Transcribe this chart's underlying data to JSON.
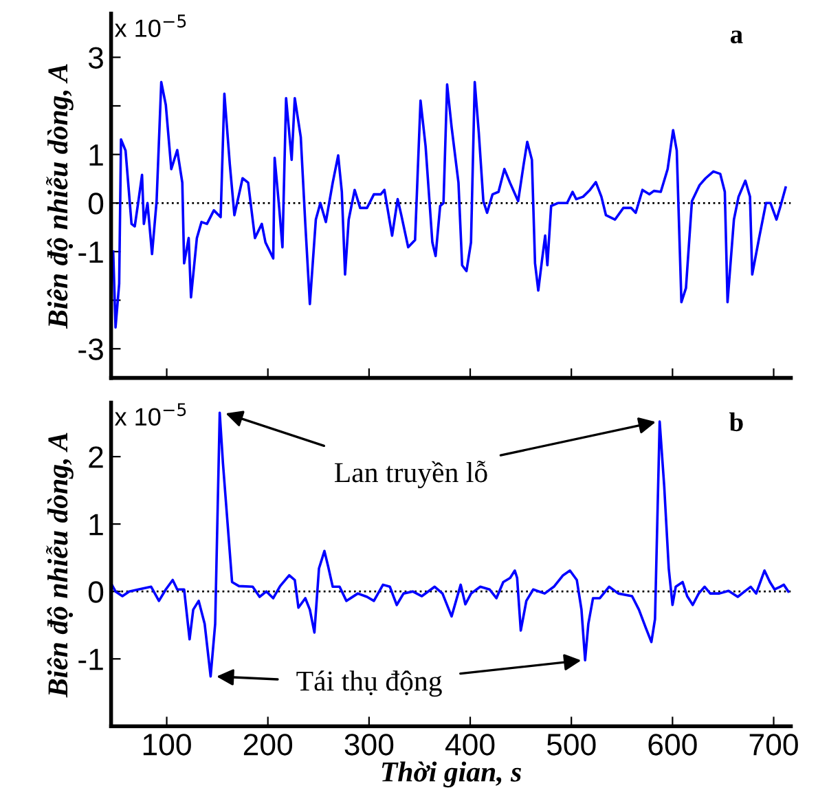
{
  "chart_data": [
    {
      "type": "line",
      "ylabel": "Biên độ nhiễu dòng, A",
      "annotations": [
        "x 10$^{−5}$",
        "a"
      ],
      "xlim": [
        45,
        717
      ],
      "xticks": [
        100,
        200,
        300,
        400,
        500,
        600,
        700
      ],
      "ylim": [
        -3.6,
        3.9
      ],
      "yticks": [
        -3,
        {
          "value": -2,
          "label": null
        },
        -1,
        0,
        1,
        {
          "value": 2,
          "label": null
        },
        3
      ],
      "tick_labels": "y",
      "grid": false,
      "line_style": "solid",
      "marker": "none",
      "ref_lines": [
        {
          "axis": "y",
          "value": 0,
          "color": "#000000",
          "line_style": "dotted"
        }
      ],
      "series": [
        {
          "color": "#0000ff",
          "x": [
            47.1,
            49.4,
            53,
            54.8,
            59.3,
            65.2,
            68.4,
            72,
            75.6,
            77.4,
            81,
            85.5,
            90,
            94.6,
            99.1,
            104.5,
            110.4,
            115.4,
            117.2,
            121.7,
            124,
            129.8,
            134.4,
            139.8,
            146.6,
            153.3,
            157,
            162.4,
            166.9,
            175,
            180.5,
            187.2,
            194,
            197.6,
            205.3,
            206.7,
            211.2,
            214.4,
            218,
            223.5,
            226.6,
            232.5,
            237,
            241.5,
            247.4,
            251.9,
            257.3,
            264.1,
            269.5,
            273.1,
            276.3,
            279.9,
            285.8,
            291.2,
            298,
            304.8,
            311.6,
            315.2,
            322.8,
            328.3,
            331.9,
            338.7,
            345.5,
            350.9,
            355.9,
            362.6,
            365.8,
            370.3,
            373.6,
            377.2,
            381.7,
            388.4,
            392,
            396.3,
            400.8,
            404.5,
            408.5,
            413,
            416.7,
            422.1,
            428,
            433.8,
            439.3,
            447.4,
            452.8,
            456.4,
            461,
            464.1,
            467.3,
            470.9,
            474.1,
            476.3,
            480,
            486.7,
            495.8,
            501.2,
            504.8,
            511.6,
            518.4,
            524.2,
            529.7,
            534.2,
            543.2,
            551.4,
            559,
            563.6,
            570.3,
            577.1,
            581.6,
            588.4,
            595.2,
            600.6,
            604.2,
            608.8,
            613.3,
            619.2,
            626.8,
            632.7,
            640.4,
            647.2,
            651.7,
            654.4,
            660.7,
            665.3,
            672,
            676.6,
            678.8,
            685.6,
            692.4,
            696.9,
            702.8,
            706.8,
            711.8
          ],
          "values": [
            -1.0,
            -2.56,
            -1.66,
            1.31,
            1.08,
            -0.43,
            -0.48,
            0.04,
            0.58,
            -0.43,
            0,
            -1.05,
            0.04,
            2.49,
            2.02,
            0.7,
            1.09,
            0.42,
            -1.24,
            -0.72,
            -1.94,
            -0.72,
            -0.39,
            -0.43,
            -0.15,
            -0.29,
            2.25,
            0.79,
            -0.25,
            0.51,
            0.42,
            -0.72,
            -0.43,
            -0.81,
            -1.14,
            0.93,
            -0.1,
            -0.91,
            2.16,
            0.89,
            2.16,
            1.36,
            -0.43,
            -2.08,
            -0.34,
            0,
            -0.39,
            0.42,
            0.98,
            0.23,
            -1.47,
            -0.34,
            0.27,
            -0.1,
            -0.1,
            0.18,
            0.18,
            0.27,
            -0.67,
            0.08,
            -0.25,
            -0.91,
            -0.76,
            2.11,
            1.17,
            -0.81,
            -1.09,
            -0.06,
            0,
            2.44,
            1.55,
            0.42,
            -1.28,
            -1.4,
            -0.81,
            2.49,
            1.45,
            0.04,
            -0.2,
            0.18,
            0.23,
            0.7,
            0.42,
            0.04,
            0.79,
            1.26,
            0.89,
            -1.24,
            -1.8,
            -1.19,
            -0.67,
            -1.28,
            -0.06,
            0,
            0,
            0.23,
            0.08,
            0.13,
            0.27,
            0.43,
            0.13,
            -0.25,
            -0.34,
            -0.1,
            -0.1,
            -0.2,
            0.27,
            0.18,
            0.25,
            0.23,
            0.7,
            1.5,
            1.08,
            -2.04,
            -1.75,
            0.04,
            0.37,
            0.51,
            0.65,
            0.6,
            0.23,
            -2.04,
            -0.34,
            0.13,
            0.46,
            0.13,
            -1.47,
            -0.72,
            0,
            0,
            -0.34,
            -0.06,
            0.32
          ]
        }
      ]
    },
    {
      "type": "line",
      "ylabel": "Biên độ nhiễu dòng, A",
      "xlabel": "Thời gian, s",
      "annotations": [
        "x 10$^{−5}$",
        "b",
        {
          "text": "Lan truyền lỗ",
          "x": 152.4,
          "y": 2.65
        },
        {
          "text": "Tái thụ động",
          "x": 143.4,
          "y": -1.26
        }
      ],
      "xlim": [
        45,
        717
      ],
      "xticks": [
        100,
        200,
        300,
        400,
        500,
        600,
        700
      ],
      "ylim": [
        -2.0,
        2.8
      ],
      "yticks": [
        -1,
        0,
        1,
        2
      ],
      "grid": false,
      "line_style": "solid",
      "marker": "none",
      "ref_lines": [
        {
          "axis": "y",
          "value": 0,
          "color": "#000000",
          "line_style": "dotted"
        }
      ],
      "series": [
        {
          "color": "#0000ff",
          "x": [
            45,
            49.4,
            56.2,
            62.9,
            72,
            84.6,
            92.3,
            99.1,
            105.9,
            110.4,
            117.2,
            122.6,
            126.2,
            131.6,
            137.5,
            143.4,
            147.9,
            152.4,
            155.6,
            160.1,
            164.6,
            171.4,
            185,
            191.8,
            198.5,
            205.3,
            212.1,
            221.1,
            226.6,
            230.2,
            237,
            241.5,
            246,
            250.5,
            255.9,
            259.6,
            264.1,
            270.9,
            277.6,
            288.9,
            298,
            304.8,
            313.8,
            320.6,
            327.4,
            334.1,
            343.2,
            352.2,
            364.9,
            372.6,
            381.6,
            390.6,
            395.2,
            400.9,
            410,
            419.1,
            425.9,
            432.7,
            439.5,
            444.1,
            446.4,
            450,
            455.5,
            462.3,
            473.6,
            482.7,
            491.8,
            498.6,
            505.4,
            510,
            513.6,
            516.8,
            521.4,
            528.2,
            537.3,
            546.4,
            560,
            566.8,
            573.6,
            579.1,
            582.7,
            587.3,
            591.8,
            596.3,
            600,
            603.2,
            610,
            614.5,
            620,
            625.9,
            631.8,
            637.3,
            646.3,
            655.4,
            664.5,
            671.3,
            677.3,
            682.7,
            690.9,
            696.3,
            700.9,
            706.4,
            710,
            714.5
          ],
          "values": [
            0.12,
            0,
            -0.07,
            0,
            0.03,
            0.07,
            -0.14,
            0.03,
            0.17,
            0.03,
            0.03,
            -0.71,
            -0.27,
            -0.14,
            -0.48,
            -1.26,
            -0.48,
            2.65,
            1.9,
            1.02,
            0.14,
            0.08,
            0.07,
            -0.08,
            0,
            -0.1,
            0.08,
            0.24,
            0.17,
            -0.24,
            -0.1,
            -0.27,
            -0.61,
            0.34,
            0.6,
            0.37,
            0.07,
            0.07,
            -0.14,
            -0.03,
            -0.08,
            -0.14,
            0.1,
            0.07,
            -0.2,
            -0.03,
            0,
            -0.07,
            0.07,
            -0.03,
            -0.37,
            0.1,
            -0.19,
            -0.03,
            0.07,
            0.03,
            -0.1,
            0.14,
            0.2,
            0.31,
            0.2,
            -0.58,
            -0.14,
            0.03,
            -0.03,
            0.07,
            0.24,
            0.31,
            0.17,
            -0.27,
            -1.02,
            -0.48,
            -0.1,
            -0.1,
            0.07,
            -0.03,
            -0.07,
            -0.27,
            -0.54,
            -0.75,
            -0.41,
            2.52,
            1.56,
            0.34,
            -0.2,
            0.07,
            0.14,
            -0.07,
            -0.2,
            -0.03,
            0.07,
            -0.03,
            -0.03,
            0.01,
            -0.08,
            0,
            0.07,
            -0.03,
            0.31,
            0.14,
            0.03,
            0.07,
            0.1,
            0
          ]
        }
      ]
    }
  ]
}
